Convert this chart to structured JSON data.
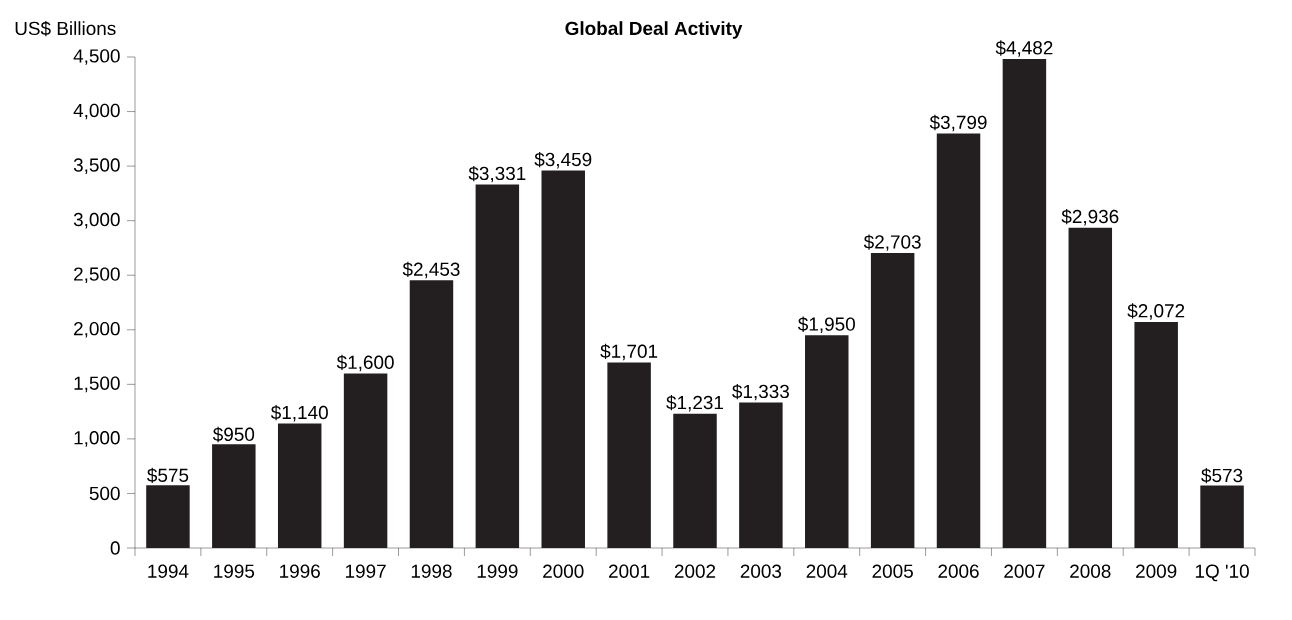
{
  "chart_data": {
    "type": "bar",
    "title": "Global Deal Activity",
    "ylabel": "US$ Billions",
    "categories": [
      "1994",
      "1995",
      "1996",
      "1997",
      "1998",
      "1999",
      "2000",
      "2001",
      "2002",
      "2003",
      "2004",
      "2005",
      "2006",
      "2007",
      "2008",
      "2009",
      "1Q '10"
    ],
    "values": [
      575,
      950,
      1140,
      1600,
      2453,
      3331,
      3459,
      1701,
      1231,
      1333,
      1950,
      2703,
      3799,
      4482,
      2936,
      2072,
      573
    ],
    "value_labels": [
      "$575",
      "$950",
      "$1,140",
      "$1,600",
      "$2,453",
      "$3,331",
      "$3,459",
      "$1,701",
      "$1,231",
      "$1,333",
      "$1,950",
      "$2,703",
      "$3,799",
      "$4,482",
      "$2,936",
      "$2,072",
      "$573"
    ],
    "color": "#231f20",
    "ylim": [
      0,
      4500
    ],
    "yticks": [
      0,
      500,
      {
        "value": 1000,
        "label": "1,000"
      },
      {
        "value": 1500,
        "label": "1,500"
      },
      {
        "value": 2000,
        "label": "2,000"
      },
      {
        "value": 2500,
        "label": "2,500"
      },
      {
        "value": 3000,
        "label": "3,000"
      },
      {
        "value": 3500,
        "label": "3,500"
      },
      {
        "value": 4000,
        "label": "4,000"
      },
      {
        "value": 4500,
        "label": "4,500"
      }
    ],
    "grid": false
  }
}
